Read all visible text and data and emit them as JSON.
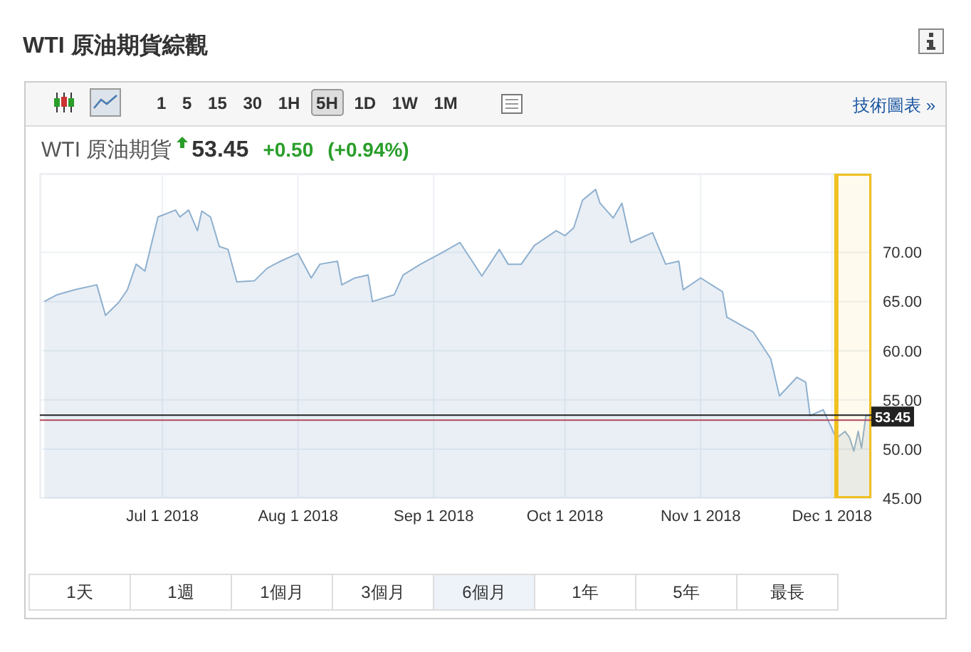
{
  "chart_data": {
    "type": "area",
    "title": "WTI 原油期貨綜觀",
    "subtitle": "WTI 原油期貨",
    "annotations": [
      "1 5 15 30 1H 5H 1D 1W 1M",
      "技術圖表 »",
      "53.45",
      "+0.50",
      "(+0.94%)",
      "1天",
      "1週",
      "1個月",
      "3個月",
      "6個月",
      "1年",
      "5年",
      "最長"
    ],
    "x": [
      "2018-06-04",
      "2018-06-07",
      "2018-06-11",
      "2018-06-16",
      "2018-06-18",
      "2018-06-21",
      "2018-06-23",
      "2018-06-25",
      "2018-06-27",
      "2018-06-30",
      "2018-07-04",
      "2018-07-05",
      "2018-07-07",
      "2018-07-09",
      "2018-07-10",
      "2018-07-12",
      "2018-07-14",
      "2018-07-16",
      "2018-07-18",
      "2018-07-22",
      "2018-07-25",
      "2018-07-28",
      "2018-08-01",
      "2018-08-04",
      "2018-08-06",
      "2018-08-10",
      "2018-08-11",
      "2018-08-14",
      "2018-08-17",
      "2018-08-18",
      "2018-08-23",
      "2018-08-25",
      "2018-08-29",
      "2018-09-03",
      "2018-09-07",
      "2018-09-12",
      "2018-09-16",
      "2018-09-18",
      "2018-09-21",
      "2018-09-24",
      "2018-09-29",
      "2018-10-01",
      "2018-10-03",
      "2018-10-05",
      "2018-10-08",
      "2018-10-09",
      "2018-10-12",
      "2018-10-14",
      "2018-10-16",
      "2018-10-21",
      "2018-10-24",
      "2018-10-27",
      "2018-10-28",
      "2018-11-01",
      "2018-11-06",
      "2018-11-07",
      "2018-11-13",
      "2018-11-17",
      "2018-11-19",
      "2018-11-23",
      "2018-11-25",
      "2018-11-26",
      "2018-11-29",
      "2018-12-02",
      "2018-12-04",
      "2018-12-05",
      "2018-12-06",
      "2018-12-07",
      "2018-12-07T18:00",
      "2018-12-08T18:00",
      "2018-12-09T12:00"
    ],
    "series": [
      {
        "color": "#8fb0cf",
        "values": [
          65.0,
          65.7,
          66.2,
          66.7,
          63.6,
          64.9,
          66.2,
          68.8,
          68.1,
          73.6,
          74.3,
          73.6,
          74.3,
          72.2,
          74.2,
          73.6,
          70.6,
          70.3,
          67.0,
          67.1,
          68.4,
          69.1,
          69.9,
          67.4,
          68.8,
          69.1,
          66.7,
          67.4,
          67.7,
          65.0,
          65.7,
          67.7,
          68.8,
          70.0,
          71.0,
          67.6,
          70.3,
          68.8,
          68.8,
          70.7,
          72.2,
          71.7,
          72.5,
          75.3,
          76.4,
          75.0,
          73.5,
          75.0,
          71.0,
          72.0,
          68.8,
          69.1,
          66.2,
          67.4,
          66.0,
          63.4,
          61.9,
          59.2,
          55.4,
          57.3,
          56.8,
          53.4,
          54.0,
          51.1,
          51.8,
          51.2,
          49.8,
          51.8,
          50.1,
          53.4,
          53.45
        ]
      }
    ],
    "xlim": [
      "2018-06-03",
      "2018-12-10"
    ],
    "xticks": [
      {
        "value": "2018-07-01",
        "label": "Jul 1 2018"
      },
      {
        "value": "2018-08-01",
        "label": "Aug 1 2018"
      },
      {
        "value": "2018-09-01",
        "label": "Sep 1 2018"
      },
      {
        "value": "2018-10-01",
        "label": "Oct 1 2018"
      },
      {
        "value": "2018-11-01",
        "label": "Nov 1 2018"
      },
      {
        "value": "2018-12-01",
        "label": "Dec 1 2018"
      }
    ],
    "ylim": [
      45,
      78
    ],
    "yticks": [
      {
        "value": 45,
        "label": "45.00"
      },
      {
        "value": 50,
        "label": "50.00"
      },
      {
        "value": 55,
        "label": "55.00"
      },
      {
        "value": 60,
        "label": "60.00"
      },
      {
        "value": 65,
        "label": "65.00"
      },
      {
        "value": 70,
        "label": "70.00"
      }
    ],
    "ref_lines": [
      {
        "axis": "y",
        "value": 53.45,
        "label": "53.45",
        "color": "#222222"
      },
      {
        "axis": "y",
        "value": 52.95,
        "label": null,
        "color": "#b04a5a"
      }
    ],
    "bands": [
      {
        "axis": "x",
        "from": "2018-12-02",
        "to": "2018-12-10",
        "label": null,
        "color": "#f0c020"
      }
    ],
    "grid": true
  }
}
